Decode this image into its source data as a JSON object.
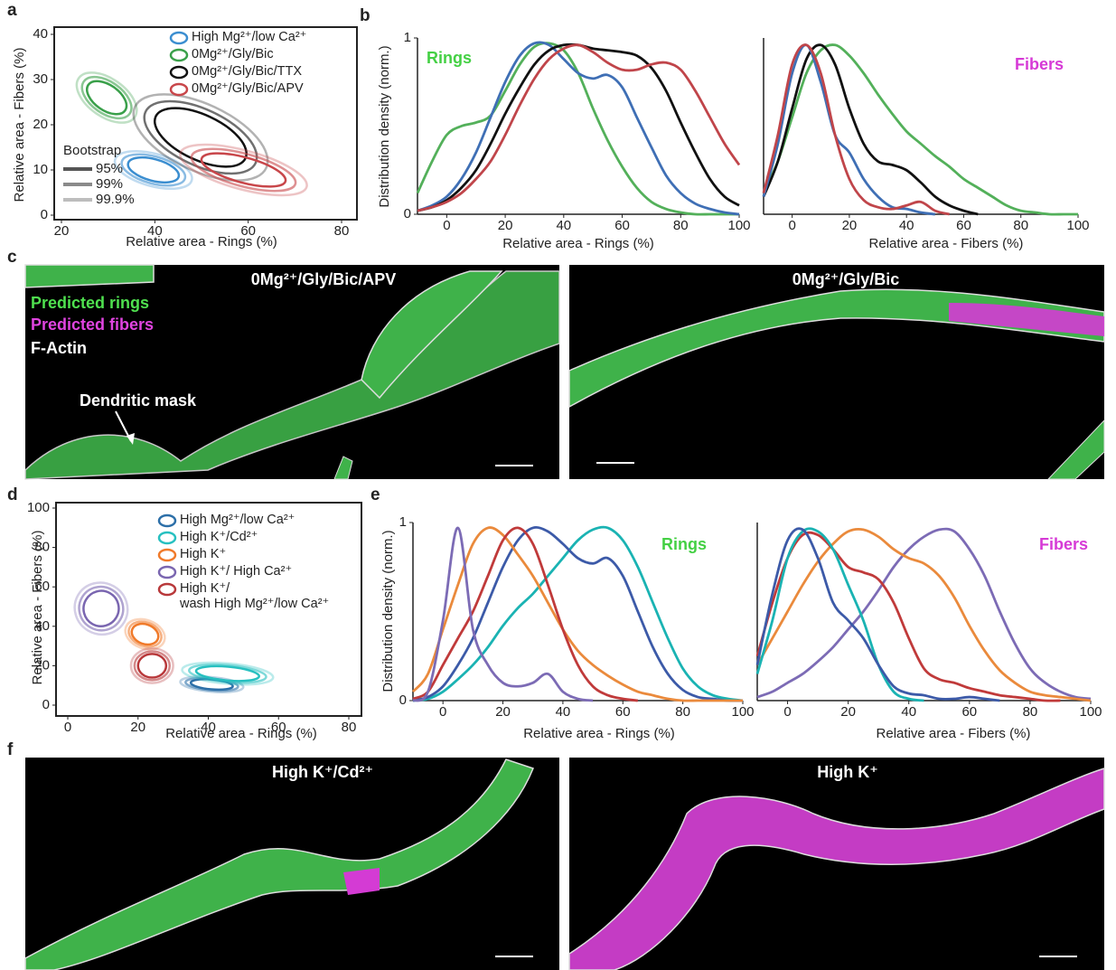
{
  "panel_labels": [
    "a",
    "b",
    "c",
    "d",
    "e",
    "f"
  ],
  "chart_data": [
    {
      "type": "ellipse",
      "xlabel": "Relative area - Rings (%)",
      "ylabel": "Relative area - Fibers (%)",
      "xlim": [
        20,
        80
      ],
      "xticks": [
        20,
        40,
        60,
        80
      ],
      "ylim": [
        0,
        40
      ],
      "yticks": [
        0,
        10,
        20,
        30,
        40
      ],
      "legend_title": "Bootstrap",
      "levels": [
        "95%",
        "99%",
        "99.9%"
      ],
      "level_colors": [
        "#555555",
        "#8a8a8a",
        "#bdbdbd"
      ],
      "series": [
        {
          "name": "High Mg²⁺/low Ca²⁺",
          "color": "#3b8ed0",
          "center": [
            39.7,
            10
          ],
          "rx": [
            5.6,
            7,
            8.5
          ],
          "ry": [
            2.4,
            3,
            3.6
          ],
          "angle": -15
        },
        {
          "name": "0Mg²⁺/Gly/Bic",
          "color": "#3aa04a",
          "center": [
            29.7,
            26
          ],
          "rx": [
            4.8,
            6,
            7.3
          ],
          "ry": [
            2.8,
            3.5,
            4.2
          ],
          "angle": -35
        },
        {
          "name": "0Mg²⁺/Gly/Bic/TTX",
          "color": "#111111",
          "center": [
            49.8,
            17.2
          ],
          "rx": [
            10.6,
            13,
            15.5
          ],
          "ry": [
            5,
            6.2,
            7.4
          ],
          "angle": -25
        },
        {
          "name": "0Mg²⁺/Gly/Bic/APV",
          "color": "#c8464a",
          "center": [
            59,
            10
          ],
          "rx": [
            9.3,
            11.5,
            14
          ],
          "ry": [
            2.8,
            3.6,
            4.3
          ],
          "angle": -15
        }
      ]
    },
    {
      "type": "line",
      "title": "Rings",
      "title_color": "#44d044",
      "xlabel": "Relative area - Rings (%)",
      "ylabel": "Distribution density (norm.)",
      "xlim": [
        -10,
        100
      ],
      "xticks": [
        0,
        20,
        40,
        60,
        80,
        100
      ],
      "ylim": [
        0,
        1
      ],
      "yticks": [
        0,
        1
      ],
      "x": [
        -10,
        -5,
        0,
        5,
        10,
        15,
        20,
        25,
        30,
        35,
        40,
        45,
        50,
        55,
        60,
        65,
        70,
        75,
        80,
        85,
        90,
        95,
        100
      ],
      "series": [
        {
          "color": "#53b05a",
          "values": [
            0.12,
            0.3,
            0.45,
            0.5,
            0.52,
            0.56,
            0.7,
            0.85,
            0.95,
            0.97,
            0.93,
            0.8,
            0.6,
            0.42,
            0.27,
            0.15,
            0.07,
            0.03,
            0.01,
            0,
            0,
            0,
            0
          ]
        },
        {
          "color": "#3f6fb5",
          "values": [
            0.02,
            0.05,
            0.1,
            0.2,
            0.35,
            0.55,
            0.75,
            0.9,
            0.97,
            0.96,
            0.88,
            0.8,
            0.77,
            0.79,
            0.72,
            0.55,
            0.38,
            0.22,
            0.12,
            0.06,
            0.03,
            0.01,
            0
          ]
        },
        {
          "color": "#111111",
          "values": [
            0.02,
            0.04,
            0.08,
            0.15,
            0.25,
            0.4,
            0.57,
            0.72,
            0.85,
            0.93,
            0.96,
            0.96,
            0.94,
            0.93,
            0.92,
            0.9,
            0.83,
            0.7,
            0.52,
            0.35,
            0.2,
            0.1,
            0.05
          ]
        },
        {
          "color": "#c0454a",
          "values": [
            0.02,
            0.04,
            0.07,
            0.12,
            0.2,
            0.3,
            0.45,
            0.62,
            0.77,
            0.88,
            0.94,
            0.96,
            0.92,
            0.86,
            0.82,
            0.82,
            0.85,
            0.86,
            0.82,
            0.7,
            0.55,
            0.4,
            0.28
          ]
        }
      ]
    },
    {
      "type": "line",
      "title": "Fibers",
      "title_color": "#d63ad6",
      "xlabel": "Relative area - Fibers (%)",
      "xlim": [
        -10,
        100
      ],
      "xticks": [
        0,
        20,
        40,
        60,
        80,
        100
      ],
      "ylim": [
        0,
        1
      ],
      "x": [
        -10,
        -5,
        0,
        5,
        10,
        15,
        20,
        25,
        30,
        35,
        40,
        45,
        50,
        55,
        60,
        65,
        70,
        75,
        80,
        85,
        90,
        95,
        100
      ],
      "series": [
        {
          "color": "#53b05a",
          "values": [
            0.12,
            0.3,
            0.55,
            0.8,
            0.93,
            0.96,
            0.9,
            0.8,
            0.68,
            0.57,
            0.47,
            0.4,
            0.33,
            0.27,
            0.2,
            0.15,
            0.1,
            0.05,
            0.02,
            0.01,
            0,
            0,
            0
          ]
        },
        {
          "color": "#111111",
          "values": [
            0.1,
            0.3,
            0.6,
            0.88,
            0.96,
            0.85,
            0.6,
            0.4,
            0.3,
            0.28,
            0.25,
            0.18,
            0.1,
            0.05,
            0.02,
            0,
            null,
            null,
            null,
            null,
            null,
            null,
            null
          ]
        },
        {
          "color": "#3f6fb5",
          "values": [
            0.1,
            0.4,
            0.8,
            0.96,
            0.75,
            0.45,
            0.35,
            0.2,
            0.1,
            0.04,
            0.03,
            0.01,
            0,
            null,
            null,
            null,
            null,
            null,
            null,
            null,
            null,
            null,
            null
          ]
        },
        {
          "color": "#c0454a",
          "values": [
            0.12,
            0.45,
            0.85,
            0.96,
            0.8,
            0.45,
            0.2,
            0.08,
            0.04,
            0.03,
            0.05,
            0.07,
            0.02,
            0,
            null,
            null,
            null,
            null,
            null,
            null,
            null,
            null,
            null
          ]
        }
      ]
    },
    {
      "type": "ellipse",
      "xlabel": "Relative area - Rings (%)",
      "ylabel": "Relative area - Fibers (%)",
      "xlim": [
        0,
        80
      ],
      "xticks": [
        0,
        20,
        40,
        60,
        80
      ],
      "ylim": [
        0,
        100
      ],
      "yticks": [
        0,
        20,
        40,
        60,
        80,
        100
      ],
      "series": [
        {
          "name": "High Mg²⁺/low Ca²⁺",
          "color": "#2c6fa8",
          "center": [
            41,
            10.5
          ],
          "rx": [
            6,
            7.5,
            9
          ],
          "ry": [
            2.5,
            3,
            3.7
          ],
          "angle": -5
        },
        {
          "name": "High K⁺/Cd²⁺",
          "color": "#27c0c0",
          "center": [
            45.5,
            16
          ],
          "rx": [
            9,
            11,
            13
          ],
          "ry": [
            3.5,
            4.3,
            5.2
          ],
          "angle": -5
        },
        {
          "name": "High K⁺",
          "color": "#f07a2a",
          "center": [
            22,
            36
          ],
          "rx": [
            3.9,
            4.8,
            5.8
          ],
          "ry": [
            5,
            6,
            7.2
          ],
          "angle": -20
        },
        {
          "name": "High K⁺/ High Ca²⁺",
          "color": "#7a66b0",
          "center": [
            9.5,
            49
          ],
          "rx": [
            5,
            6.3,
            7.6
          ],
          "ry": [
            9,
            11,
            13
          ],
          "angle": -30
        },
        {
          "name": "High K⁺/\nwash High Mg²⁺/low Ca²⁺",
          "color": "#b8383a",
          "center": [
            24,
            20
          ],
          "rx": [
            4,
            5,
            6
          ],
          "ry": [
            6,
            7.3,
            8.8
          ],
          "angle": 0
        }
      ]
    },
    {
      "type": "line",
      "title": "Rings",
      "title_color": "#44d044",
      "xlabel": "Relative area - Rings (%)",
      "ylabel": "Distribution density (norm.)",
      "xlim": [
        -10,
        100
      ],
      "xticks": [
        0,
        20,
        40,
        60,
        80,
        100
      ],
      "ylim": [
        0,
        1
      ],
      "yticks": [
        0,
        1
      ],
      "x": [
        -10,
        -5,
        0,
        5,
        10,
        15,
        20,
        25,
        30,
        35,
        40,
        45,
        50,
        55,
        60,
        65,
        70,
        75,
        80,
        85,
        90,
        95,
        100
      ],
      "series": [
        {
          "color": "#1ab3b3",
          "values": [
            0,
            0.01,
            0.05,
            0.12,
            0.2,
            0.3,
            0.42,
            0.52,
            0.6,
            0.7,
            0.8,
            0.9,
            0.96,
            0.97,
            0.9,
            0.75,
            0.55,
            0.35,
            0.18,
            0.08,
            0.03,
            0.01,
            0
          ]
        },
        {
          "color": "#3c5aa8",
          "values": [
            0,
            0.02,
            0.08,
            0.2,
            0.35,
            0.55,
            0.75,
            0.9,
            0.97,
            0.95,
            0.88,
            0.8,
            0.77,
            0.8,
            0.7,
            0.5,
            0.3,
            0.15,
            0.06,
            0.02,
            0.01,
            0,
            0
          ]
        },
        {
          "color": "#ea8a3c",
          "values": [
            0.05,
            0.15,
            0.4,
            0.65,
            0.88,
            0.97,
            0.93,
            0.82,
            0.7,
            0.55,
            0.4,
            0.28,
            0.2,
            0.14,
            0.09,
            0.05,
            0.03,
            0.01,
            0,
            0,
            0,
            0,
            0
          ]
        },
        {
          "color": "#c03a3a",
          "values": [
            0.01,
            0.05,
            0.2,
            0.35,
            0.5,
            0.7,
            0.9,
            0.97,
            0.88,
            0.65,
            0.4,
            0.2,
            0.08,
            0.03,
            0.01,
            0,
            null,
            null,
            null,
            null,
            null,
            null,
            null
          ]
        },
        {
          "color": "#7c6bb5",
          "values": [
            0,
            0.05,
            0.45,
            0.97,
            0.4,
            0.2,
            0.1,
            0.08,
            0.1,
            0.15,
            0.05,
            0.01,
            0,
            null,
            null,
            null,
            null,
            null,
            null,
            null,
            null,
            null,
            null
          ]
        }
      ]
    },
    {
      "type": "line",
      "title": "Fibers",
      "title_color": "#d63ad6",
      "xlabel": "Relative area - Fibers (%)",
      "xlim": [
        -10,
        100
      ],
      "xticks": [
        0,
        20,
        40,
        60,
        80,
        100
      ],
      "ylim": [
        0,
        1
      ],
      "x": [
        -10,
        -5,
        0,
        5,
        10,
        15,
        20,
        25,
        30,
        35,
        40,
        45,
        50,
        55,
        60,
        65,
        70,
        75,
        80,
        85,
        90,
        95,
        100
      ],
      "series": [
        {
          "color": "#7c6bb5",
          "values": [
            0.02,
            0.05,
            0.1,
            0.15,
            0.22,
            0.3,
            0.4,
            0.5,
            0.62,
            0.75,
            0.85,
            0.92,
            0.96,
            0.95,
            0.85,
            0.7,
            0.5,
            0.32,
            0.18,
            0.1,
            0.05,
            0.02,
            0.01
          ]
        },
        {
          "color": "#ea8a3c",
          "values": [
            0.2,
            0.35,
            0.5,
            0.65,
            0.78,
            0.88,
            0.95,
            0.96,
            0.92,
            0.85,
            0.8,
            0.77,
            0.7,
            0.58,
            0.42,
            0.28,
            0.17,
            0.1,
            0.05,
            0.03,
            0.02,
            0.01,
            0
          ]
        },
        {
          "color": "#c03a3a",
          "values": [
            0.25,
            0.55,
            0.8,
            0.93,
            0.93,
            0.85,
            0.75,
            0.72,
            0.68,
            0.55,
            0.35,
            0.18,
            0.12,
            0.1,
            0.07,
            0.05,
            0.03,
            0.02,
            0.01,
            0,
            0,
            null,
            null
          ]
        },
        {
          "color": "#1ab3b3",
          "values": [
            0.15,
            0.45,
            0.8,
            0.95,
            0.95,
            0.85,
            0.65,
            0.45,
            0.2,
            0.05,
            0.01,
            0,
            null,
            null,
            null,
            null,
            null,
            null,
            null,
            null,
            null,
            null,
            null
          ]
        },
        {
          "color": "#3c5aa8",
          "values": [
            0.2,
            0.6,
            0.9,
            0.96,
            0.8,
            0.55,
            0.45,
            0.35,
            0.2,
            0.08,
            0.04,
            0.03,
            0.01,
            0.01,
            0.02,
            0.01,
            0,
            null,
            null,
            null,
            null,
            null,
            null
          ]
        }
      ]
    }
  ],
  "images": [
    {
      "title": "0Mg²⁺/Gly/Bic/APV",
      "legend": [
        "Predicted rings",
        "Predicted fibers",
        "F-Actin"
      ],
      "annotation": "Dendritic mask"
    },
    {
      "title": "0Mg²⁺/Gly/Bic"
    },
    {
      "title": "High K⁺/Cd²⁺"
    },
    {
      "title": "High K⁺"
    }
  ]
}
